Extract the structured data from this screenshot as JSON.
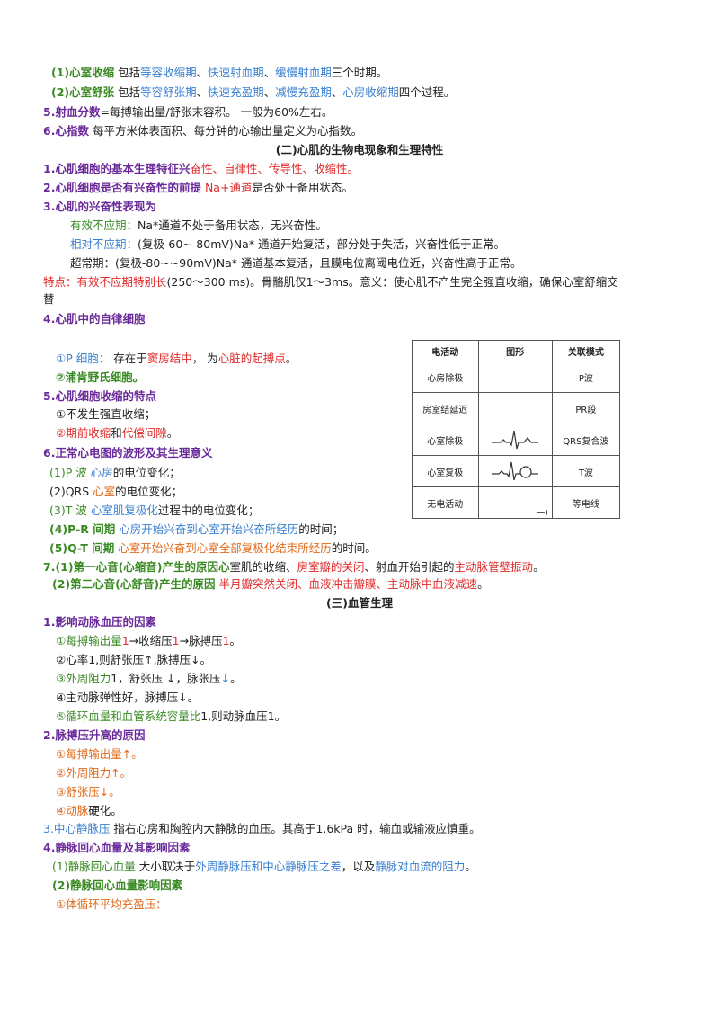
{
  "l1": {
    "num": "(1)",
    "term": "心室收缩",
    "pre": "包括",
    "p1": "等容收缩期",
    "s1": "、",
    "p2": "快速射血期",
    "s2": "、",
    "p3": "缓慢射血期",
    "post": "三个时期。"
  },
  "l2": {
    "num": "(2)",
    "term": "心室舒张",
    "pre": "包括",
    "p1": "等容舒张期",
    "s1": "、",
    "p2": "快速充盈期",
    "s2": "、",
    "p3": "减慢充盈期",
    "s3": "、",
    "p4": "心房收缩期",
    "post": "四个过程。"
  },
  "l3": {
    "term": "5.射血分数",
    "text": "=每搏输出量/舒张末容积。  一般为60%左右。"
  },
  "l4": {
    "term": "6.心指数",
    "text": "每平方米体表面积、每分钟的心输出量定义为心指数。"
  },
  "h2": "(二)心肌的生物电现象和生理特性",
  "l5": {
    "term": "1.心肌细胞的基本生理特征兴",
    "text": "奋性、自律性、传导性、收缩性。"
  },
  "l6": {
    "term": "2.心肌细胞是否有兴奋性的前提",
    "red": "Na+通道",
    "text": "是否处于备用状态。"
  },
  "l7": "3.心肌的兴奋性表现为",
  "l8": {
    "label": "有效不应期：",
    "text": "Na*通道不处于备用状态，无兴奋性。"
  },
  "l9": {
    "label": "相对不应期：",
    "text": "(复极-60~-80mV)Na*  通道开始复活，部分处于失活，兴奋性低于正常。"
  },
  "l10": {
    "label": "超常期：",
    "text": "(复极-80~~90mV)Na*  通道基本复活，且膜电位离阈电位近，兴奋性高于正常。"
  },
  "l11": {
    "red": "特点：有效不应期特别长",
    "text": "(250～300 ms)。骨骼肌仅1～3ms。意义：使心肌不产生完全强直收缩，确保心室舒缩交"
  },
  "l11b": "替",
  "l12": "4.心肌中的自律细胞",
  "l13": {
    "num": "①",
    "blue": "P 细胞：",
    "text1": " 存在于",
    "red1": "窦房结中",
    "text2": "， 为",
    "red2": "心脏的起搏点",
    "text3": "。"
  },
  "l14": "②浦肯野氏细胞。",
  "l15": "5.心肌细胞收缩的特点",
  "l16": "①不发生强直收缩；",
  "l17": {
    "num": "②",
    "red1": "期前收缩",
    "and": "和",
    "red2": "代偿间隙",
    "end": "。"
  },
  "l18": "6.正常心电图的波形及其生理意义",
  "l19": {
    "num": "(1)P  波",
    "blue": "心房",
    "text": "的电位变化；"
  },
  "l20": {
    "num": "(2)QRS",
    "orange": "心室",
    "text": "的电位变化；"
  },
  "l21": {
    "num": "(3)T  波",
    "blue": "心室肌复极化",
    "text": "过程中的电位变化；"
  },
  "l22": {
    "term": "(4)P-R  间期",
    "blue": "心房开始兴奋到心室开始兴奋所经历",
    "text": "的时间；"
  },
  "l23": {
    "term": "(5)Q-T  间期",
    "orange": "心室开始兴奋到心室全部复极化结束所经历",
    "text": "的时间。"
  },
  "l24": {
    "term": "7.(1)第一心音(心缩音)产生的原因心",
    "text1": "室肌的收缩、",
    "red1": "房室瓣的关闭",
    "text2": "、射血开始引起的",
    "red2": "主动脉管壁振动",
    "text3": "。"
  },
  "l25": {
    "term": "(2)第二心音(心舒音)产生的原因",
    "red": "半月瓣突然关闭、血液冲击瓣膜、主动脉中血液减速",
    "text": "。"
  },
  "h3": "(三)血管生理",
  "l26": "1.影响动脉血压的因素",
  "l27": {
    "a": "①每搏输出量",
    "r1": "1",
    "b": "→收缩压",
    "r2": "1",
    "c": "→脉搏压",
    "r3": "1",
    "d": "。"
  },
  "l28": "②心率1,则舒张压↑,脉搏压↓。",
  "l29": {
    "a": "③外周阻力",
    "b": "1，舒张压 ↓，脉张压",
    "c": "↓",
    "d": "。"
  },
  "l30": "④主动脉弹性好，脉搏压↓。",
  "l31": {
    "a": "⑤循环血量和血管系统容量比",
    "b": "1,则动脉血压1。"
  },
  "l32": "2.脉搏压升高的原因",
  "l33": "①每搏输出量↑。",
  "l34": "②外周阻力↑。",
  "l35": "③舒张压↓。",
  "l36": {
    "a": "④动脉",
    "b": "硬化。"
  },
  "l37": {
    "a": "3.中心静脉压",
    "b": "指右心房和胸腔内大静脉的血压。其高于1.6kPa 时，输血或输液应慎重。"
  },
  "l38": "4.静脉回心血量及其影响因素",
  "l39": {
    "a": "(1)静脉回心血量",
    "b": "大小取决于",
    "c": "外周静脉压和中心静脉压之差",
    "d": "，以及",
    "e": "静脉对血流的阻力",
    "f": "。"
  },
  "l40": "(2)静脉回心血量影响因素",
  "l41": "①体循环平均充盈压：",
  "table": {
    "headers": [
      "电活动",
      "图形",
      "关联模式"
    ],
    "rows": [
      {
        "act": "心房除极",
        "pat": "P波"
      },
      {
        "act": "房室结延迟",
        "pat": "PR段"
      },
      {
        "act": "心室除极",
        "pat": "QRS复合波"
      },
      {
        "act": "心室复极",
        "pat": "T波"
      },
      {
        "act": "无电活动",
        "pat": "等电线",
        "fig": "一)"
      }
    ]
  }
}
